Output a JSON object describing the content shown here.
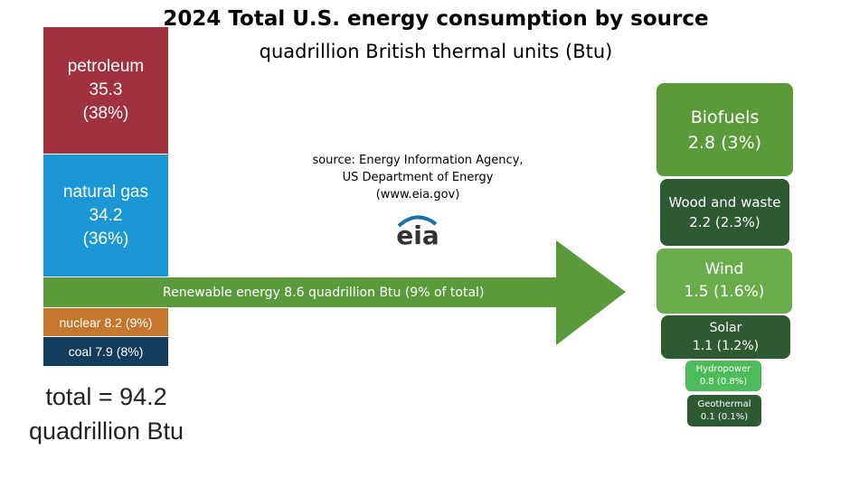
{
  "title": "2024 Total U.S. energy consumption by source",
  "subtitle": "quadrillion British thermal units (Btu)",
  "stack": {
    "segments": [
      {
        "label": "petroleum",
        "value": 35.3,
        "share": "(38%)"
      },
      {
        "label": "natural gas",
        "value": 34.2,
        "share": "(36%)"
      },
      {
        "label": "nuclear",
        "value": 8.2,
        "share": "(9%)"
      },
      {
        "label": "coal",
        "value": 7.9,
        "share": "(8%)"
      }
    ],
    "renewable": "Renewable energy 8.6 quadrillion Btu (9% of total)",
    "total": [
      "total = 94.2",
      "quadrillion Btu"
    ]
  },
  "source": {
    "lines": [
      "source: Energy Information Agency,",
      "US Department of Energy",
      "(www.eia.gov)"
    ],
    "logo": "eia"
  },
  "renewables": [
    {
      "name": "Biofuels",
      "detail": "2.8 (3%)"
    },
    {
      "name": "Wood and waste",
      "detail": "2.2 (2.3%)"
    },
    {
      "name": "Wind",
      "detail": "1.5 (1.6%)"
    },
    {
      "name": "Solar",
      "detail": "1.1 (1.2%)"
    },
    {
      "name": "Hydropower",
      "detail": "0.8 (0.8%)"
    },
    {
      "name": "Geothermal",
      "detail": "0.1 (0.1%)"
    }
  ]
}
